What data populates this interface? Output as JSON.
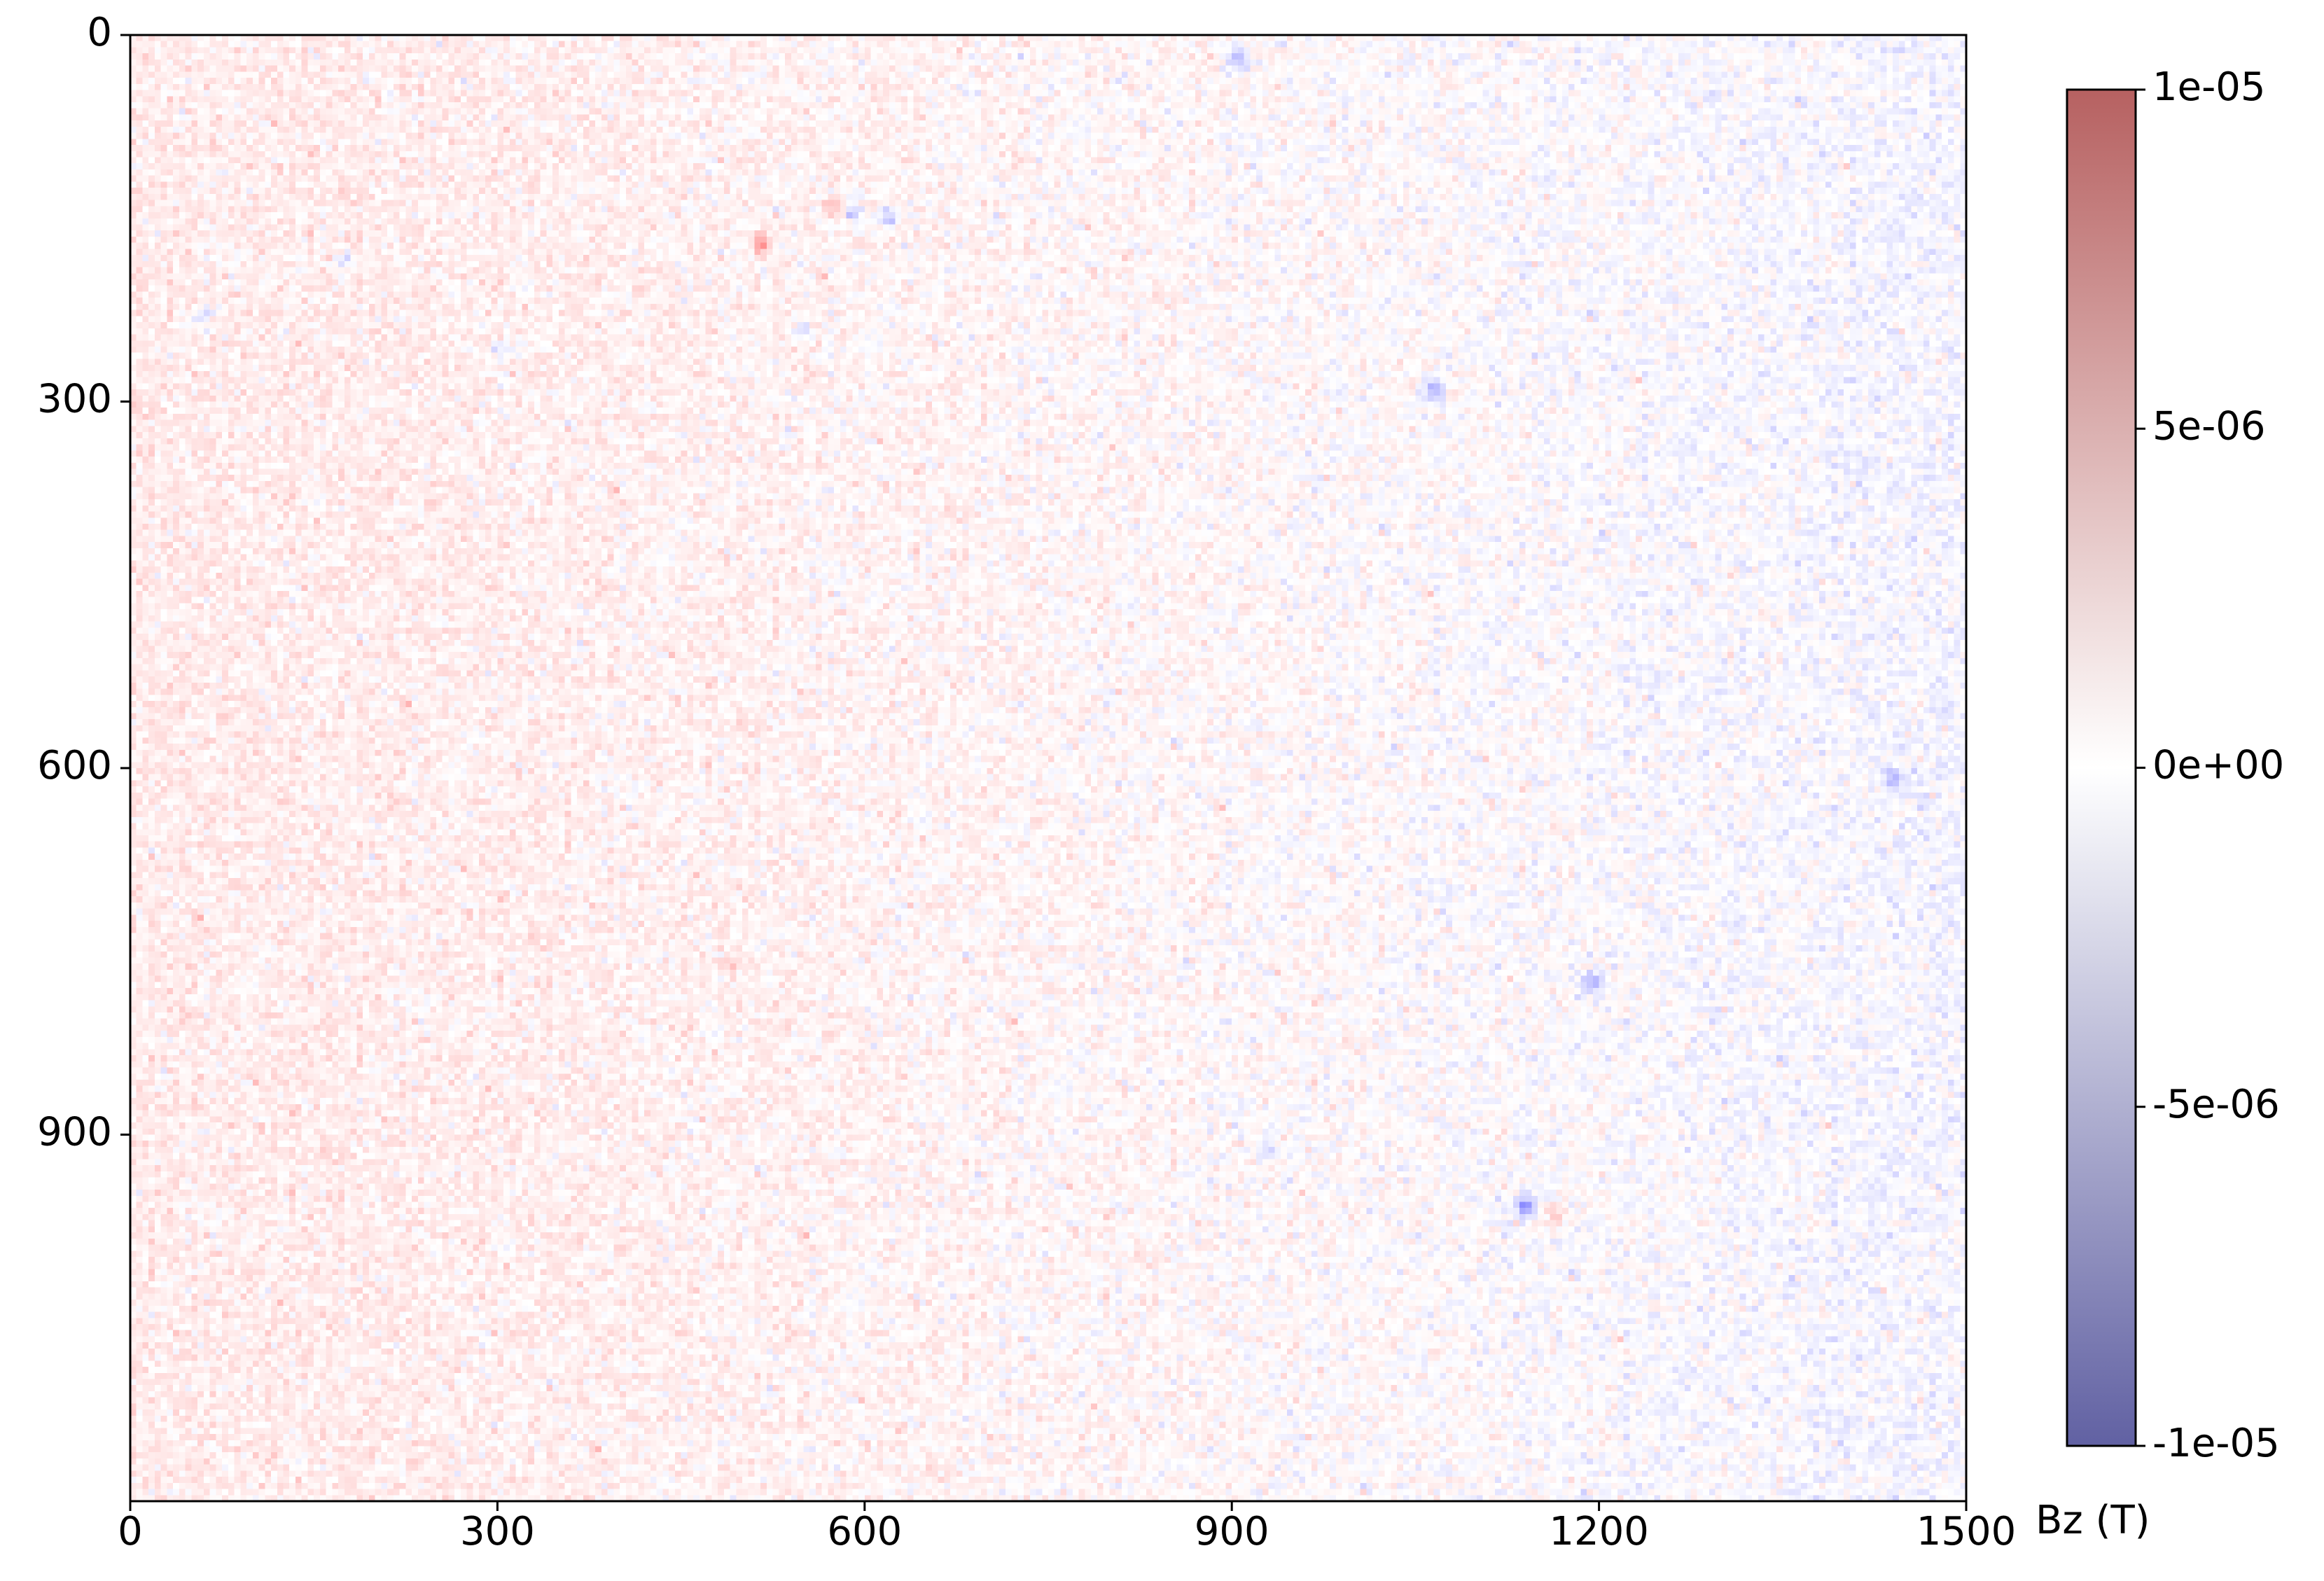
{
  "chart_data": {
    "type": "heatmap",
    "title": "",
    "xlabel": "",
    "ylabel": "",
    "x_range": [
      0,
      1500
    ],
    "y_range": [
      0,
      1200
    ],
    "y_inverted": true,
    "x_ticks": [
      0,
      300,
      600,
      900,
      1200,
      1500
    ],
    "y_ticks": [
      0,
      300,
      600,
      900
    ],
    "x_tick_labels": [
      "0",
      "300",
      "600",
      "900",
      "1200",
      "1500"
    ],
    "y_tick_labels": [
      "0",
      "300",
      "600",
      "900"
    ],
    "colormap": "bwr",
    "colormap_colors": [
      "#0000ff",
      "#ffffff",
      "#ff0000"
    ],
    "alpha": 0.6,
    "vmin": -1e-05,
    "vmax": 1e-05,
    "colorbar": {
      "label": "Bz (T)",
      "ticks": [
        1e-05,
        5e-06,
        0,
        -5e-06,
        -1e-05
      ],
      "tick_labels": [
        "1e-05",
        "5e-06",
        "0e+00",
        "-5e-06",
        "-1e-05"
      ]
    },
    "description_values": {
      "background_mean_left": 1.2e-06,
      "background_mean_right": -6e-07,
      "noise_std": 9e-07
    },
    "hotspots": [
      {
        "x": 515,
        "y": 170,
        "value": 5.5e-06
      },
      {
        "x": 590,
        "y": 145,
        "value": -4.5e-06
      },
      {
        "x": 620,
        "y": 148,
        "value": -4e-06
      },
      {
        "x": 575,
        "y": 142,
        "value": 3e-06
      },
      {
        "x": 905,
        "y": 20,
        "value": -5.5e-06
      },
      {
        "x": 305,
        "y": 255,
        "value": -2.5e-06
      },
      {
        "x": 1065,
        "y": 290,
        "value": -5e-06
      },
      {
        "x": 1195,
        "y": 775,
        "value": -6e-06
      },
      {
        "x": 1140,
        "y": 960,
        "value": -7e-06
      },
      {
        "x": 1165,
        "y": 965,
        "value": 3e-06
      },
      {
        "x": 1440,
        "y": 610,
        "value": -4e-06
      },
      {
        "x": 175,
        "y": 185,
        "value": -3e-06
      },
      {
        "x": 60,
        "y": 230,
        "value": -3e-06
      },
      {
        "x": 550,
        "y": 240,
        "value": -3e-06
      },
      {
        "x": 490,
        "y": 760,
        "value": 3e-06
      },
      {
        "x": 930,
        "y": 915,
        "value": -3e-06
      }
    ]
  }
}
